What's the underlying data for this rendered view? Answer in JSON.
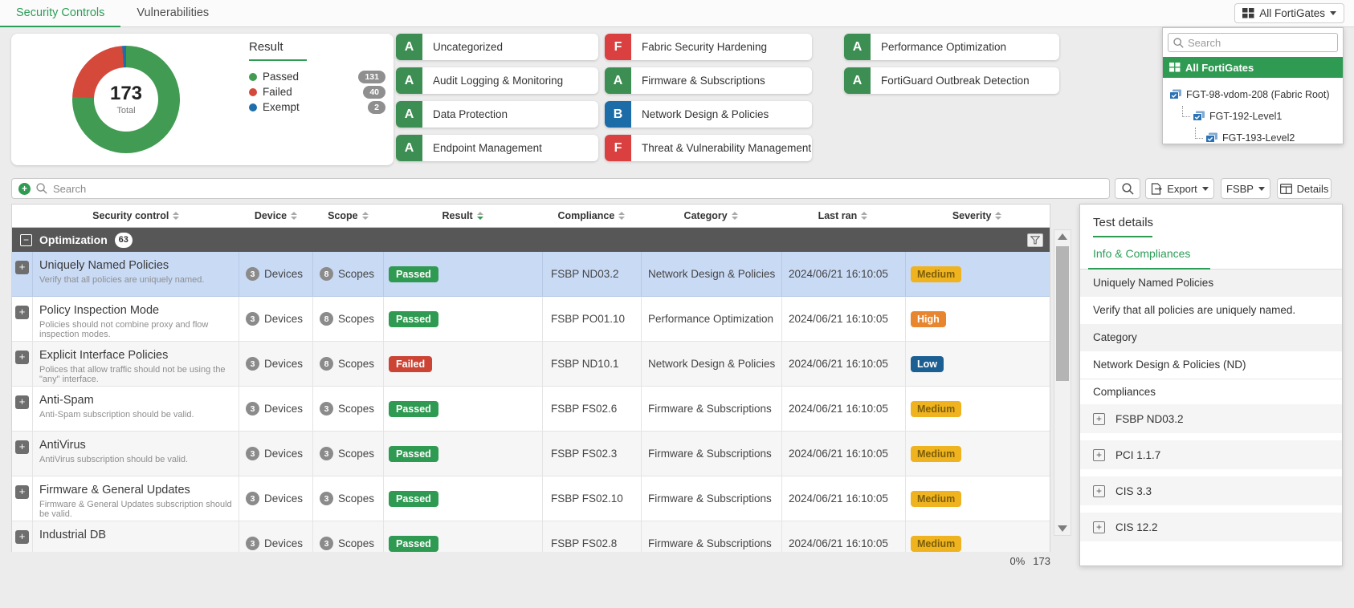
{
  "colors": {
    "accent_green": "#2f9a51",
    "grades": {
      "A": "#3d8e52",
      "F": "#d9403f",
      "B": "#1c6ca8"
    },
    "result": {
      "Passed": "#2f9a51",
      "Failed": "#cc4434"
    },
    "severity": {
      "Medium": {
        "bg": "#eeb31e",
        "fg": "#7d5e08"
      },
      "High": {
        "bg": "#e8862f",
        "fg": "#ffffff"
      },
      "Low": {
        "bg": "#1c5f93",
        "fg": "#ffffff"
      }
    }
  },
  "topbar": {
    "tabs": [
      {
        "label": "Security Controls",
        "active": true
      },
      {
        "label": "Vulnerabilities",
        "active": false
      }
    ],
    "device_button": {
      "label": "All FortiGates"
    }
  },
  "device_dropdown": {
    "search_placeholder": "Search",
    "selected_item": "All FortiGates",
    "tree": [
      {
        "label": "FGT-98-vdom-208 (Fabric Root)",
        "level": 0
      },
      {
        "label": "FGT-192-Level1",
        "level": 1
      },
      {
        "label": "FGT-193-Level2",
        "level": 2
      }
    ]
  },
  "summary": {
    "chart_data": {
      "type": "pie",
      "title": "Result",
      "total": 173,
      "total_label": "Total",
      "slices": [
        {
          "label": "Passed",
          "value": 131,
          "color": "#419b52"
        },
        {
          "label": "Failed",
          "value": 40,
          "color": "#d5493b"
        },
        {
          "label": "Exempt",
          "value": 2,
          "color": "#1f6eaa"
        }
      ]
    },
    "categories": [
      {
        "grade": "A",
        "label": "Uncategorized",
        "col": 1
      },
      {
        "grade": "A",
        "label": "Audit Logging & Monitoring",
        "col": 1
      },
      {
        "grade": "A",
        "label": "Data Protection",
        "col": 1
      },
      {
        "grade": "A",
        "label": "Endpoint Management",
        "col": 1
      },
      {
        "grade": "F",
        "label": "Fabric Security Hardening",
        "col": 2
      },
      {
        "grade": "A",
        "label": "Firmware & Subscriptions",
        "col": 2
      },
      {
        "grade": "B",
        "label": "Network Design & Policies",
        "col": 2
      },
      {
        "grade": "F",
        "label": "Threat & Vulnerability Management",
        "col": 2
      },
      {
        "grade": "A",
        "label": "Performance Optimization",
        "col": 3
      },
      {
        "grade": "A",
        "label": "FortiGuard Outbreak Detection",
        "col": 3
      }
    ]
  },
  "toolbar": {
    "search_placeholder": "Search",
    "export_label": "Export",
    "standard_label": "FSBP",
    "details_label": "Details"
  },
  "table": {
    "columns": [
      "Security control",
      "Device",
      "Scope",
      "Result",
      "Compliance",
      "Category",
      "Last ran",
      "Severity"
    ],
    "sorted_column": "Result",
    "device_unit": "Devices",
    "scope_unit": "Scopes",
    "group": {
      "label": "Optimization",
      "count": "63"
    },
    "rows": [
      {
        "control": "Uniquely Named Policies",
        "description": "Verify that all policies are uniquely named.",
        "devices": "3",
        "scopes": "8",
        "result": "Passed",
        "compliance": "FSBP ND03.2",
        "category": "Network Design & Policies",
        "last_ran": "2024/06/21 16:10:05",
        "severity": "Medium",
        "selected": true
      },
      {
        "control": "Policy Inspection Mode",
        "description": "Policies should not combine proxy and flow inspection modes.",
        "devices": "3",
        "scopes": "8",
        "result": "Passed",
        "compliance": "FSBP PO01.10",
        "category": "Performance Optimization",
        "last_ran": "2024/06/21 16:10:05",
        "severity": "High",
        "selected": false
      },
      {
        "control": "Explicit Interface Policies",
        "description": "Polices that allow traffic should not be using the \"any\" interface.",
        "devices": "3",
        "scopes": "8",
        "result": "Failed",
        "compliance": "FSBP ND10.1",
        "category": "Network Design & Policies",
        "last_ran": "2024/06/21 16:10:05",
        "severity": "Low",
        "selected": false
      },
      {
        "control": "Anti-Spam",
        "description": "Anti-Spam subscription should be valid.",
        "devices": "3",
        "scopes": "3",
        "result": "Passed",
        "compliance": "FSBP FS02.6",
        "category": "Firmware & Subscriptions",
        "last_ran": "2024/06/21 16:10:05",
        "severity": "Medium",
        "selected": false
      },
      {
        "control": "AntiVirus",
        "description": "AntiVirus subscription should be valid.",
        "devices": "3",
        "scopes": "3",
        "result": "Passed",
        "compliance": "FSBP FS02.3",
        "category": "Firmware & Subscriptions",
        "last_ran": "2024/06/21 16:10:05",
        "severity": "Medium",
        "selected": false
      },
      {
        "control": "Firmware & General Updates",
        "description": "Firmware & General Updates subscription should be valid.",
        "devices": "3",
        "scopes": "3",
        "result": "Passed",
        "compliance": "FSBP FS02.10",
        "category": "Firmware & Subscriptions",
        "last_ran": "2024/06/21 16:10:05",
        "severity": "Medium",
        "selected": false
      },
      {
        "control": "Industrial DB",
        "description": "",
        "devices": "3",
        "scopes": "3",
        "result": "Passed",
        "compliance": "FSBP FS02.8",
        "category": "Firmware & Subscriptions",
        "last_ran": "2024/06/21 16:10:05",
        "severity": "Medium",
        "selected": false
      }
    ]
  },
  "details_panel": {
    "title": "Test details",
    "tab": "Info & Compliances",
    "fields": [
      {
        "text": "Uniquely Named Policies",
        "striped": true
      },
      {
        "text": "Verify that all policies are uniquely named.",
        "striped": false
      },
      {
        "text": "Category",
        "striped": true
      },
      {
        "text": "Network Design & Policies (ND)",
        "striped": false
      }
    ],
    "compliances_label": "Compliances",
    "compliances": [
      "FSBP ND03.2",
      "PCI 1.1.7",
      "CIS 3.3",
      "CIS 12.2"
    ]
  },
  "status": {
    "progress": "0%",
    "count": "173"
  }
}
